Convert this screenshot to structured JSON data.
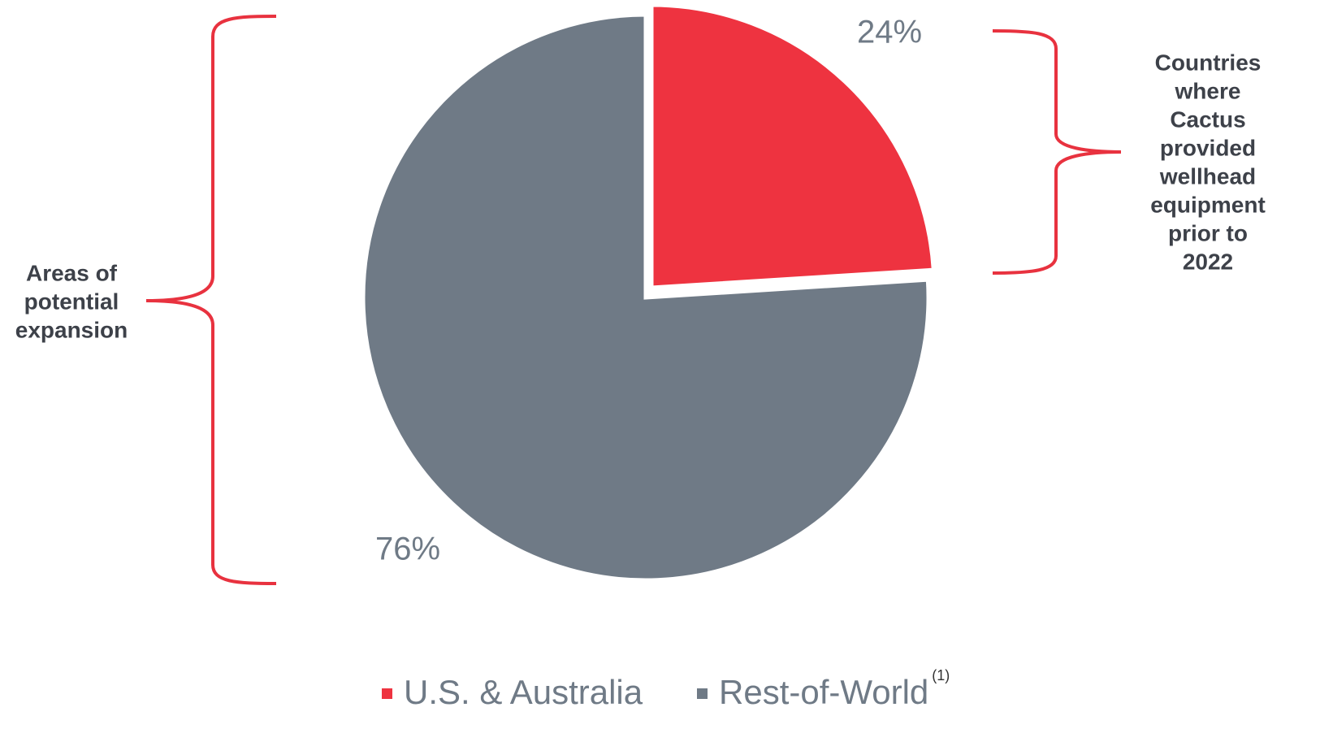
{
  "chart_data": {
    "type": "pie",
    "categories": [
      "U.S. & Australia",
      "Rest-of-World"
    ],
    "values": [
      24,
      76
    ],
    "value_labels": [
      "24%",
      "76%"
    ],
    "colors": [
      "#ee3340",
      "#6f7a86"
    ],
    "legend_note": "(1)",
    "annotations": [
      {
        "lines": [
          "Areas of",
          "potential",
          "expansion"
        ]
      },
      {
        "lines": [
          "Countries",
          "where",
          "Cactus",
          "provided",
          "wellhead",
          "equipment",
          "prior to",
          "2022"
        ]
      }
    ]
  }
}
